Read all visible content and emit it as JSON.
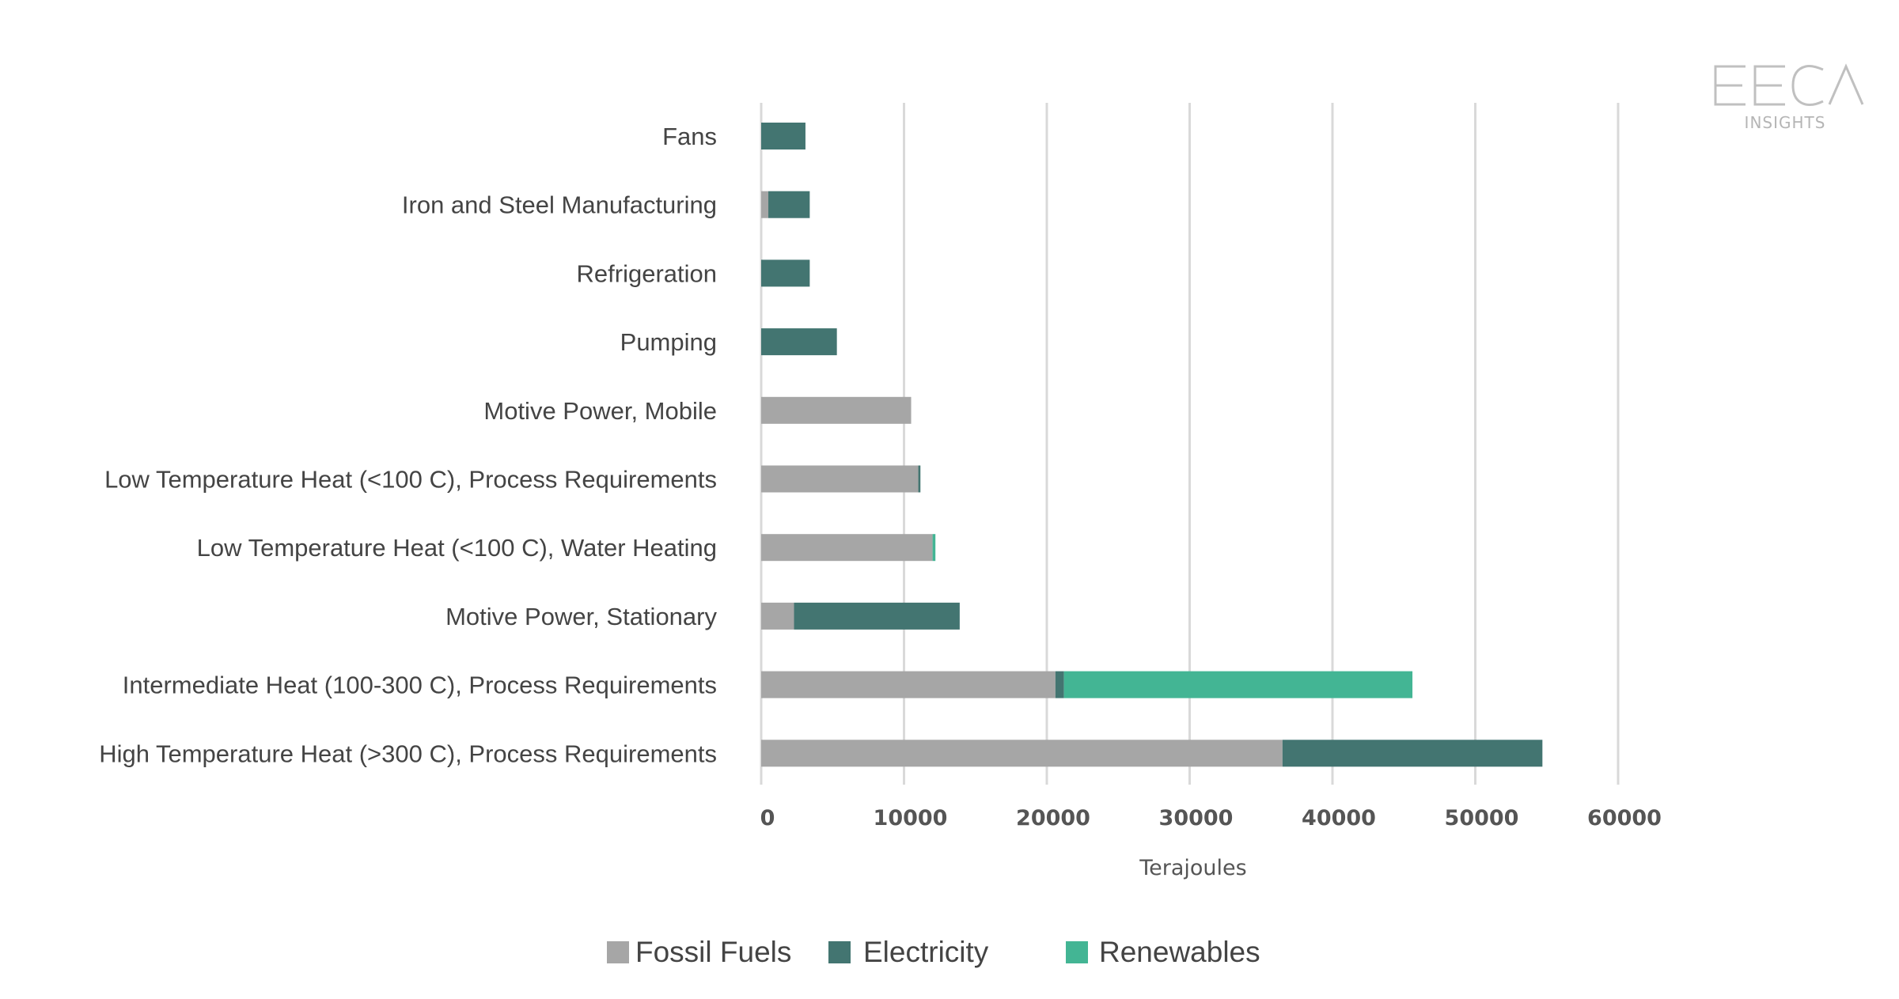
{
  "chart_data": {
    "type": "bar",
    "orientation": "horizontal",
    "stacked": true,
    "categories": [
      "Fans",
      "Iron and Steel Manufacturing",
      "Refrigeration",
      "Pumping",
      "Motive Power, Mobile",
      "Low Temperature Heat (<100 C), Process Requirements",
      "Low Temperature Heat (<100 C), Water Heating",
      "Motive Power, Stationary",
      "Intermediate Heat (100-300 C), Process Requirements",
      "High Temperature Heat (>300 C), Process Requirements"
    ],
    "series": [
      {
        "name": "Fossil Fuels",
        "color": "#a6a6a6",
        "values": [
          0,
          500,
          0,
          0,
          10500,
          11000,
          12000,
          2300,
          20600,
          36500
        ]
      },
      {
        "name": "Electricity",
        "color": "#437571",
        "values": [
          3100,
          2900,
          3400,
          5300,
          0,
          150,
          0,
          11600,
          600,
          18200
        ]
      },
      {
        "name": "Renewables",
        "color": "#43b594",
        "values": [
          0,
          0,
          0,
          0,
          0,
          0,
          200,
          0,
          24400,
          0
        ]
      }
    ],
    "xlabel": "Terajoules",
    "xlim": [
      0,
      60000
    ],
    "xticks": [
      "0",
      "10000",
      "20000",
      "30000",
      "40000",
      "50000",
      "60000"
    ],
    "grid": "vertical",
    "legend": "bottom"
  },
  "logo": {
    "mark": "EECA",
    "text": "INSIGHTS"
  }
}
